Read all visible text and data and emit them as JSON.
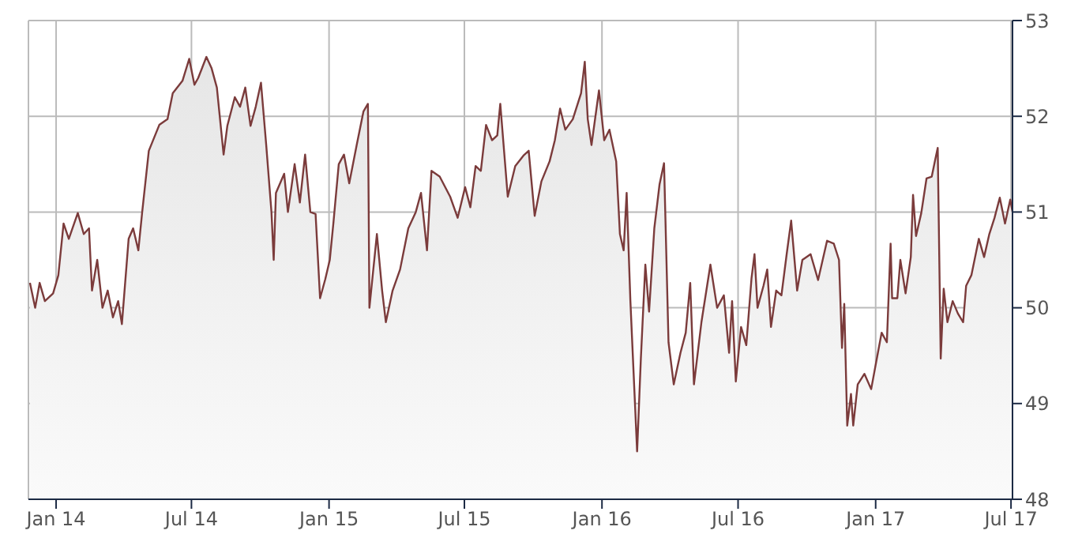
{
  "chart_data": {
    "type": "area",
    "grid": true,
    "xlim": [
      "2013-11-25",
      "2017-07-03"
    ],
    "ylim": [
      48,
      53
    ],
    "yticks": [
      48,
      49,
      50,
      51,
      52,
      53
    ],
    "xticks": [
      {
        "value": "2014-01-01",
        "label": "Jan 14"
      },
      {
        "value": "2014-07-01",
        "label": "Jul 14"
      },
      {
        "value": "2015-01-01",
        "label": "Jan 15"
      },
      {
        "value": "2015-07-01",
        "label": "Jul 15"
      },
      {
        "value": "2016-01-01",
        "label": "Jan 16"
      },
      {
        "value": "2016-07-01",
        "label": "Jul 16"
      },
      {
        "value": "2017-01-01",
        "label": "Jan 17"
      },
      {
        "value": "2017-07-01",
        "label": "Jul 17"
      }
    ],
    "series": [
      {
        "color": "#7b3b3b",
        "x": [
          "2013-11-27",
          "2013-12-04",
          "2013-12-10",
          "2013-12-17",
          "2013-12-28",
          "2014-01-04",
          "2014-01-11",
          "2014-01-18",
          "2014-01-30",
          "2014-02-07",
          "2014-02-14",
          "2014-02-18",
          "2014-02-25",
          "2014-03-04",
          "2014-03-11",
          "2014-03-18",
          "2014-03-25",
          "2014-03-30",
          "2014-04-08",
          "2014-04-14",
          "2014-04-21",
          "2014-04-26",
          "2014-05-05",
          "2014-05-19",
          "2014-05-30",
          "2014-06-06",
          "2014-06-19",
          "2014-06-28",
          "2014-07-05",
          "2014-07-10",
          "2014-07-21",
          "2014-07-28",
          "2014-08-04",
          "2014-08-13",
          "2014-08-18",
          "2014-08-28",
          "2014-09-04",
          "2014-09-11",
          "2014-09-18",
          "2014-09-25",
          "2014-10-02",
          "2014-10-09",
          "2014-10-16",
          "2014-10-19",
          "2014-10-22",
          "2014-11-02",
          "2014-11-07",
          "2014-11-16",
          "2014-11-23",
          "2014-11-30",
          "2014-12-07",
          "2014-12-14",
          "2014-12-20",
          "2014-12-27",
          "2015-01-02",
          "2015-01-07",
          "2015-01-14",
          "2015-01-21",
          "2015-01-28",
          "2015-02-07",
          "2015-02-16",
          "2015-02-22",
          "2015-02-24",
          "2015-03-06",
          "2015-03-13",
          "2015-03-18",
          "2015-03-27",
          "2015-04-06",
          "2015-04-17",
          "2015-04-27",
          "2015-05-04",
          "2015-05-12",
          "2015-05-18",
          "2015-05-29",
          "2015-06-12",
          "2015-06-22",
          "2015-07-02",
          "2015-07-09",
          "2015-07-16",
          "2015-07-23",
          "2015-07-30",
          "2015-08-07",
          "2015-08-14",
          "2015-08-18",
          "2015-08-28",
          "2015-09-07",
          "2015-09-18",
          "2015-09-25",
          "2015-10-03",
          "2015-10-12",
          "2015-10-23",
          "2015-10-30",
          "2015-11-06",
          "2015-11-13",
          "2015-11-23",
          "2015-12-04",
          "2015-12-09",
          "2015-12-13",
          "2015-12-18",
          "2015-12-28",
          "2016-01-04",
          "2016-01-11",
          "2016-01-20",
          "2016-01-25",
          "2016-01-30",
          "2016-02-03",
          "2016-02-08",
          "2016-02-17",
          "2016-02-22",
          "2016-02-28",
          "2016-03-04",
          "2016-03-11",
          "2016-03-18",
          "2016-03-24",
          "2016-03-30",
          "2016-04-06",
          "2016-04-15",
          "2016-04-22",
          "2016-04-28",
          "2016-05-03",
          "2016-05-13",
          "2016-05-25",
          "2016-06-03",
          "2016-06-12",
          "2016-06-19",
          "2016-06-23",
          "2016-06-28",
          "2016-07-05",
          "2016-07-12",
          "2016-07-19",
          "2016-07-23",
          "2016-07-27",
          "2016-08-04",
          "2016-08-09",
          "2016-08-14",
          "2016-08-21",
          "2016-08-28",
          "2016-09-04",
          "2016-09-10",
          "2016-09-18",
          "2016-09-25",
          "2016-10-06",
          "2016-10-16",
          "2016-10-28",
          "2016-11-06",
          "2016-11-13",
          "2016-11-17",
          "2016-11-20",
          "2016-11-24",
          "2016-11-29",
          "2016-12-02",
          "2016-12-08",
          "2016-12-17",
          "2016-12-26",
          "2017-01-04",
          "2017-01-09",
          "2017-01-16",
          "2017-01-21",
          "2017-01-23",
          "2017-01-30",
          "2017-02-03",
          "2017-02-10",
          "2017-02-17",
          "2017-02-20",
          "2017-02-24",
          "2017-03-03",
          "2017-03-10",
          "2017-03-17",
          "2017-03-22",
          "2017-03-25",
          "2017-03-29",
          "2017-04-02",
          "2017-04-07",
          "2017-04-14",
          "2017-04-21",
          "2017-04-28",
          "2017-05-02",
          "2017-05-09",
          "2017-05-19",
          "2017-05-26",
          "2017-06-02",
          "2017-06-09",
          "2017-06-16",
          "2017-06-23",
          "2017-06-30",
          "2017-07-03"
        ],
        "values": [
          50.26,
          50.0,
          50.26,
          50.07,
          50.15,
          50.34,
          50.88,
          50.72,
          50.99,
          50.77,
          50.83,
          50.18,
          50.5,
          50.0,
          50.18,
          49.9,
          50.07,
          49.83,
          50.72,
          50.83,
          50.6,
          50.99,
          51.64,
          51.91,
          51.97,
          52.24,
          52.37,
          52.6,
          52.33,
          52.4,
          52.62,
          52.5,
          52.3,
          51.6,
          51.9,
          52.2,
          52.1,
          52.3,
          51.9,
          52.1,
          52.35,
          51.7,
          51.0,
          50.5,
          51.2,
          51.4,
          51.0,
          51.5,
          51.1,
          51.6,
          51.0,
          50.98,
          50.1,
          50.3,
          50.5,
          50.9,
          51.5,
          51.6,
          51.3,
          51.7,
          52.05,
          52.13,
          50.0,
          50.77,
          50.18,
          49.85,
          50.18,
          50.4,
          50.83,
          51.0,
          51.2,
          50.6,
          51.43,
          51.37,
          51.16,
          50.94,
          51.26,
          51.05,
          51.48,
          51.43,
          51.91,
          51.75,
          51.8,
          52.13,
          51.16,
          51.48,
          51.59,
          51.64,
          50.96,
          51.32,
          51.53,
          51.75,
          52.08,
          51.86,
          51.97,
          52.24,
          52.57,
          51.97,
          51.7,
          52.27,
          51.75,
          51.86,
          51.53,
          50.77,
          50.6,
          51.2,
          50.07,
          48.5,
          49.47,
          50.45,
          49.96,
          50.83,
          51.29,
          51.51,
          49.64,
          49.2,
          49.53,
          49.74,
          50.26,
          49.2,
          49.85,
          50.45,
          50.0,
          50.13,
          49.53,
          50.07,
          49.23,
          49.8,
          49.61,
          50.31,
          50.56,
          50.0,
          50.23,
          50.4,
          49.8,
          50.18,
          50.13,
          50.56,
          50.91,
          50.18,
          50.5,
          50.56,
          50.29,
          50.7,
          50.67,
          50.5,
          49.58,
          50.04,
          48.77,
          49.1,
          48.77,
          49.2,
          49.31,
          49.15,
          49.53,
          49.74,
          49.64,
          50.67,
          50.1,
          50.1,
          50.5,
          50.15,
          50.53,
          51.18,
          50.75,
          50.99,
          51.35,
          51.37,
          51.56,
          51.67,
          49.47,
          50.2,
          49.85,
          50.07,
          49.94,
          49.85,
          50.23,
          50.34,
          50.72,
          50.53,
          50.77,
          50.94,
          51.15,
          50.88,
          51.13,
          51.0
        ]
      }
    ]
  }
}
